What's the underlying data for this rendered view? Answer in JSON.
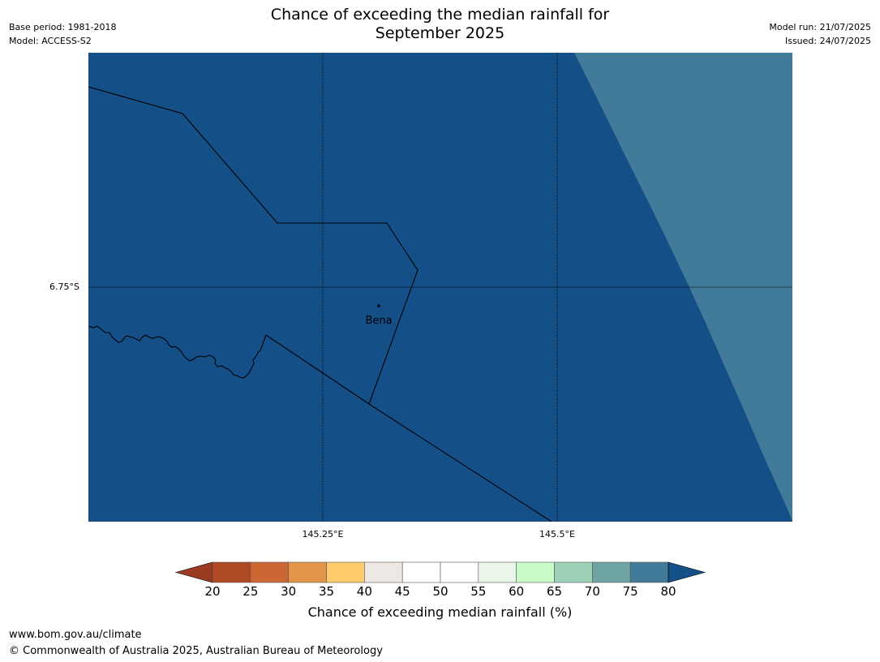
{
  "header": {
    "title_line1": "Chance of exceeding the median rainfall for",
    "title_line2": "September 2025",
    "base_period": "Base period: 1981-2018",
    "model": "Model: ACCESS-S2",
    "model_run": "Model run: 21/07/2025",
    "issued": "Issued: 24/07/2025"
  },
  "map": {
    "lat_label": "6.75°S",
    "lon_labels": [
      "145.25°E",
      "145.5°E"
    ],
    "place_name": "Bena",
    "colors": {
      "main": "#144f88",
      "secondary": "#427a99",
      "lines": "#000000"
    },
    "regions": [
      {
        "name": "70-80% chance zone",
        "color": "#427a99"
      },
      {
        "name": "80%+ chance zone",
        "color": "#144f88"
      }
    ]
  },
  "colorbar": {
    "label": "Chance of exceeding median rainfall (%)",
    "ticks": [
      "20",
      "25",
      "30",
      "35",
      "40",
      "45",
      "50",
      "55",
      "60",
      "65",
      "70",
      "75",
      "80"
    ],
    "under_color": "#9b3b22",
    "over_color": "#144f88",
    "colors": [
      "#b04a25",
      "#cc6633",
      "#e29447",
      "#fdcb69",
      "#ede8e3",
      "#ffffff",
      "#ffffff",
      "#eaf6e8",
      "#c9fbc8",
      "#9ecfb7",
      "#6da3a3",
      "#427a99"
    ]
  },
  "footer": {
    "url": "www.bom.gov.au/climate",
    "copyright": "© Commonwealth of Australia 2025, Australian Bureau of Meteorology"
  }
}
